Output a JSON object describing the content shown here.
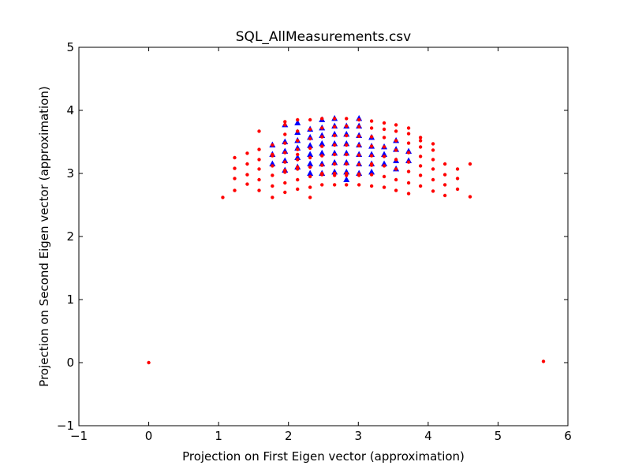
{
  "chart_data": {
    "type": "scatter",
    "title": "SQL_AllMeasurements.csv",
    "xlabel": "Projection on First Eigen vector (approximation)",
    "ylabel": "Projection on Second Eigen vector (approximation)",
    "xlim": [
      -1,
      6
    ],
    "ylim": [
      -1,
      5
    ],
    "xticks": [
      "−1",
      "0",
      "1",
      "2",
      "3",
      "4",
      "5",
      "6"
    ],
    "yticks": [
      "−1",
      "0",
      "1",
      "2",
      "3",
      "4",
      "5"
    ],
    "grid": false,
    "series": [
      {
        "marker": "triangle",
        "color": "#0000ff",
        "x": [
          1.77,
          1.77,
          1.77,
          1.95,
          1.95,
          1.95,
          1.95,
          1.95,
          2.13,
          2.13,
          2.13,
          2.13,
          2.13,
          2.13,
          2.31,
          2.31,
          2.31,
          2.31,
          2.31,
          2.31,
          2.48,
          2.48,
          2.48,
          2.48,
          2.48,
          2.48,
          2.48,
          2.66,
          2.66,
          2.66,
          2.66,
          2.66,
          2.66,
          2.66,
          2.83,
          2.83,
          2.83,
          2.83,
          2.83,
          2.83,
          2.83,
          3.01,
          3.01,
          3.01,
          3.01,
          3.01,
          3.01,
          3.01,
          3.19,
          3.19,
          3.19,
          3.19,
          3.19,
          3.37,
          3.37,
          3.37,
          3.54,
          3.54,
          3.54,
          3.54,
          3.72,
          3.72
        ],
        "y": [
          3.45,
          3.3,
          3.15,
          3.77,
          3.5,
          3.35,
          3.2,
          3.05,
          3.8,
          3.65,
          3.52,
          3.4,
          3.25,
          3.1,
          3.7,
          3.57,
          3.44,
          3.3,
          3.15,
          3.0,
          3.85,
          3.72,
          3.6,
          3.47,
          3.32,
          3.15,
          3.0,
          3.87,
          3.75,
          3.62,
          3.47,
          3.32,
          3.17,
          3.02,
          3.75,
          3.62,
          3.47,
          3.32,
          3.17,
          3.02,
          2.9,
          3.87,
          3.75,
          3.6,
          3.45,
          3.3,
          3.15,
          3.0,
          3.57,
          3.43,
          3.3,
          3.15,
          3.02,
          3.42,
          3.3,
          3.15,
          3.52,
          3.38,
          3.2,
          3.07,
          3.35,
          3.2
        ]
      },
      {
        "marker": "circle",
        "color": "#ff0000",
        "x": [
          0,
          5.65,
          1.06,
          1.23,
          1.23,
          1.23,
          1.23,
          1.41,
          1.41,
          1.41,
          1.41,
          1.58,
          1.58,
          1.58,
          1.58,
          1.58,
          1.58,
          1.77,
          1.77,
          1.77,
          1.77,
          1.77,
          1.77,
          1.77,
          1.95,
          1.95,
          1.95,
          1.95,
          1.95,
          1.95,
          1.95,
          1.95,
          1.95,
          1.95,
          2.13,
          2.13,
          2.13,
          2.13,
          2.13,
          2.13,
          2.13,
          2.13,
          2.13,
          2.13,
          2.31,
          2.31,
          2.31,
          2.31,
          2.31,
          2.31,
          2.31,
          2.31,
          2.31,
          2.48,
          2.48,
          2.48,
          2.48,
          2.48,
          2.48,
          2.48,
          2.48,
          2.48,
          2.66,
          2.66,
          2.66,
          2.66,
          2.66,
          2.66,
          2.66,
          2.66,
          2.66,
          2.83,
          2.83,
          2.83,
          2.83,
          2.83,
          2.83,
          2.83,
          2.83,
          2.83,
          3.01,
          3.01,
          3.01,
          3.01,
          3.01,
          3.01,
          3.01,
          3.01,
          3.01,
          3.19,
          3.19,
          3.19,
          3.19,
          3.19,
          3.19,
          3.19,
          3.19,
          3.19,
          3.37,
          3.37,
          3.37,
          3.37,
          3.37,
          3.37,
          3.37,
          3.37,
          3.54,
          3.54,
          3.54,
          3.54,
          3.54,
          3.54,
          3.54,
          3.54,
          3.72,
          3.72,
          3.72,
          3.72,
          3.72,
          3.72,
          3.72,
          3.72,
          3.89,
          3.89,
          3.89,
          3.89,
          3.89,
          3.89,
          3.89,
          4.07,
          4.07,
          4.07,
          4.07,
          4.07,
          4.07,
          4.24,
          4.24,
          4.24,
          4.24,
          4.42,
          4.42,
          4.42,
          4.6,
          4.6
        ],
        "y": [
          0,
          0.02,
          2.62,
          3.25,
          3.08,
          2.92,
          2.73,
          3.32,
          3.15,
          2.98,
          2.83,
          3.67,
          3.38,
          3.22,
          3.07,
          2.9,
          2.73,
          3.45,
          3.28,
          3.12,
          2.97,
          2.8,
          2.62,
          3.3,
          3.77,
          3.62,
          3.48,
          3.33,
          3.18,
          3.02,
          2.85,
          2.7,
          3.05,
          3.82,
          3.67,
          3.52,
          3.38,
          3.22,
          3.07,
          2.9,
          2.75,
          3.1,
          3.3,
          3.85,
          3.7,
          3.55,
          3.4,
          3.25,
          3.1,
          2.95,
          2.78,
          2.62,
          3.85,
          3.72,
          3.58,
          3.43,
          3.28,
          3.13,
          2.98,
          2.82,
          3.0,
          3.87,
          3.74,
          3.6,
          3.45,
          3.3,
          3.15,
          3.0,
          2.82,
          2.97,
          3.87,
          3.75,
          3.6,
          3.45,
          3.3,
          3.15,
          3.0,
          2.82,
          2.97,
          3.87,
          3.74,
          3.59,
          3.44,
          3.29,
          3.14,
          2.99,
          2.82,
          2.97,
          3.85,
          3.72,
          3.58,
          3.43,
          3.28,
          3.13,
          2.98,
          2.8,
          3.15,
          3.83,
          3.7,
          3.57,
          3.42,
          3.27,
          3.12,
          2.95,
          2.78,
          3.8,
          3.67,
          3.52,
          3.37,
          3.22,
          3.07,
          2.9,
          2.73,
          3.77,
          3.63,
          3.48,
          3.33,
          3.18,
          3.03,
          2.85,
          2.68,
          3.72,
          3.57,
          3.42,
          3.27,
          3.12,
          2.97,
          2.8,
          3.52,
          3.37,
          3.22,
          3.07,
          2.9,
          2.72,
          3.47,
          3.15,
          2.98,
          2.82,
          2.65,
          3.07,
          2.92,
          2.75,
          3.15,
          2.63
        ]
      }
    ]
  }
}
